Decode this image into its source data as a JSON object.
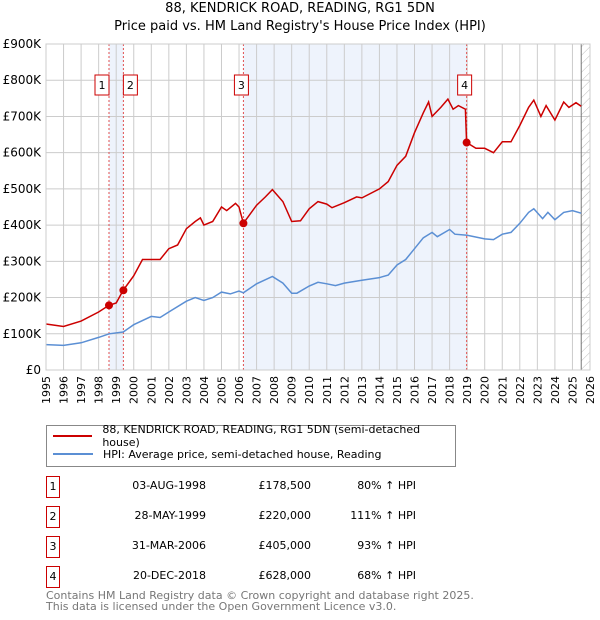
{
  "chart_data": {
    "type": "line",
    "title": "88, KENDRICK ROAD, READING, RG1 5DN",
    "subtitle": "Price paid vs. HM Land Registry's House Price Index (HPI)",
    "xlim": [
      1995,
      2026
    ],
    "ylim": [
      0,
      900000
    ],
    "yticks": [
      {
        "v": 0,
        "l": "£0"
      },
      {
        "v": 100000,
        "l": "£100K"
      },
      {
        "v": 200000,
        "l": "£200K"
      },
      {
        "v": 300000,
        "l": "£300K"
      },
      {
        "v": 400000,
        "l": "£400K"
      },
      {
        "v": 500000,
        "l": "£500K"
      },
      {
        "v": 600000,
        "l": "£600K"
      },
      {
        "v": 700000,
        "l": "£700K"
      },
      {
        "v": 800000,
        "l": "£800K"
      },
      {
        "v": 900000,
        "l": "£900K"
      }
    ],
    "xticks": [
      "1995",
      "1996",
      "1997",
      "1998",
      "1999",
      "2000",
      "2001",
      "2002",
      "2003",
      "2004",
      "2005",
      "2006",
      "2007",
      "2008",
      "2009",
      "2010",
      "2011",
      "2012",
      "2013",
      "2014",
      "2015",
      "2016",
      "2017",
      "2018",
      "2019",
      "2020",
      "2021",
      "2022",
      "2023",
      "2024",
      "2025",
      "2026"
    ],
    "grid": true,
    "series": [
      {
        "name": "88, KENDRICK ROAD, READING, RG1 5DN (semi-detached house)",
        "color": "#cc0000",
        "x": [
          1995,
          1996,
          1997,
          1998,
          1998.59,
          1999,
          1999.4,
          2000,
          2000.5,
          2001,
          2001.5,
          2002,
          2002.5,
          2003,
          2003.5,
          2003.8,
          2004,
          2004.5,
          2005,
          2005.3,
          2005.8,
          2006,
          2006.25,
          2007,
          2007.5,
          2007.9,
          2008.5,
          2009,
          2009.5,
          2010,
          2010.5,
          2011,
          2011.3,
          2012,
          2012.7,
          2013,
          2014,
          2014.5,
          2015,
          2015.5,
          2016,
          2016.5,
          2016.8,
          2017,
          2017.5,
          2017.9,
          2018.2,
          2018.5,
          2018.9,
          2018.97,
          2019.5,
          2020,
          2020.5,
          2021,
          2021.5,
          2022,
          2022.5,
          2022.8,
          2023.2,
          2023.5,
          2024,
          2024.5,
          2024.8,
          2025.2,
          2025.5
        ],
        "y": [
          127000,
          120000,
          135000,
          160000,
          178500,
          185000,
          220000,
          260000,
          305000,
          305000,
          305000,
          335000,
          345000,
          390000,
          410000,
          420000,
          400000,
          410000,
          450000,
          440000,
          460000,
          450000,
          405000,
          455000,
          478000,
          498000,
          465000,
          410000,
          412000,
          445000,
          465000,
          458000,
          448000,
          462000,
          478000,
          475000,
          500000,
          520000,
          565000,
          590000,
          655000,
          710000,
          740000,
          700000,
          725000,
          748000,
          720000,
          730000,
          720000,
          628000,
          612000,
          612000,
          600000,
          630000,
          630000,
          675000,
          725000,
          745000,
          700000,
          730000,
          690000,
          740000,
          725000,
          738000,
          728000
        ]
      },
      {
        "name": "HPI: Average price, semi-detached house, Reading",
        "color": "#5b8fd4",
        "x": [
          1995,
          1996,
          1997,
          1998,
          1998.6,
          1999.4,
          2000,
          2001,
          2001.5,
          2002,
          2003,
          2003.5,
          2004,
          2004.5,
          2005,
          2005.5,
          2006,
          2006.25,
          2007,
          2007.9,
          2008.5,
          2009,
          2009.3,
          2010,
          2010.5,
          2011,
          2011.5,
          2012,
          2013,
          2014,
          2014.5,
          2015,
          2015.5,
          2016,
          2016.5,
          2017,
          2017.3,
          2018,
          2018.3,
          2019,
          2020,
          2020.5,
          2021,
          2021.5,
          2022,
          2022.5,
          2022.8,
          2023.3,
          2023.6,
          2024,
          2024.5,
          2025,
          2025.5
        ],
        "y": [
          70000,
          68000,
          75000,
          90000,
          100000,
          105000,
          125000,
          148000,
          145000,
          160000,
          190000,
          200000,
          192000,
          200000,
          215000,
          210000,
          218000,
          213000,
          238000,
          258000,
          240000,
          212000,
          212000,
          232000,
          242000,
          238000,
          233000,
          240000,
          248000,
          255000,
          262000,
          290000,
          305000,
          335000,
          365000,
          380000,
          368000,
          388000,
          375000,
          372000,
          362000,
          360000,
          375000,
          380000,
          405000,
          435000,
          445000,
          418000,
          435000,
          415000,
          435000,
          440000,
          433000
        ]
      }
    ],
    "sales": [
      {
        "n": "1",
        "date": "03-AUG-1998",
        "x": 1998.59,
        "price": "£178,500",
        "value": 178500,
        "pct": "80% ↑ HPI"
      },
      {
        "n": "2",
        "date": "28-MAY-1999",
        "x": 1999.41,
        "price": "£220,000",
        "value": 220000,
        "pct": "111% ↑ HPI"
      },
      {
        "n": "3",
        "date": "31-MAR-2006",
        "x": 2006.25,
        "price": "£405,000",
        "value": 405000,
        "pct": "93% ↑ HPI"
      },
      {
        "n": "4",
        "date": "20-DEC-2018",
        "x": 2018.97,
        "price": "£628,000",
        "value": 628000,
        "pct": "68% ↑ HPI"
      }
    ],
    "legend_position": "below"
  },
  "footer": {
    "line1": "Contains HM Land Registry data © Crown copyright and database right 2025.",
    "line2": "This data is licensed under the Open Government Licence v3.0."
  }
}
